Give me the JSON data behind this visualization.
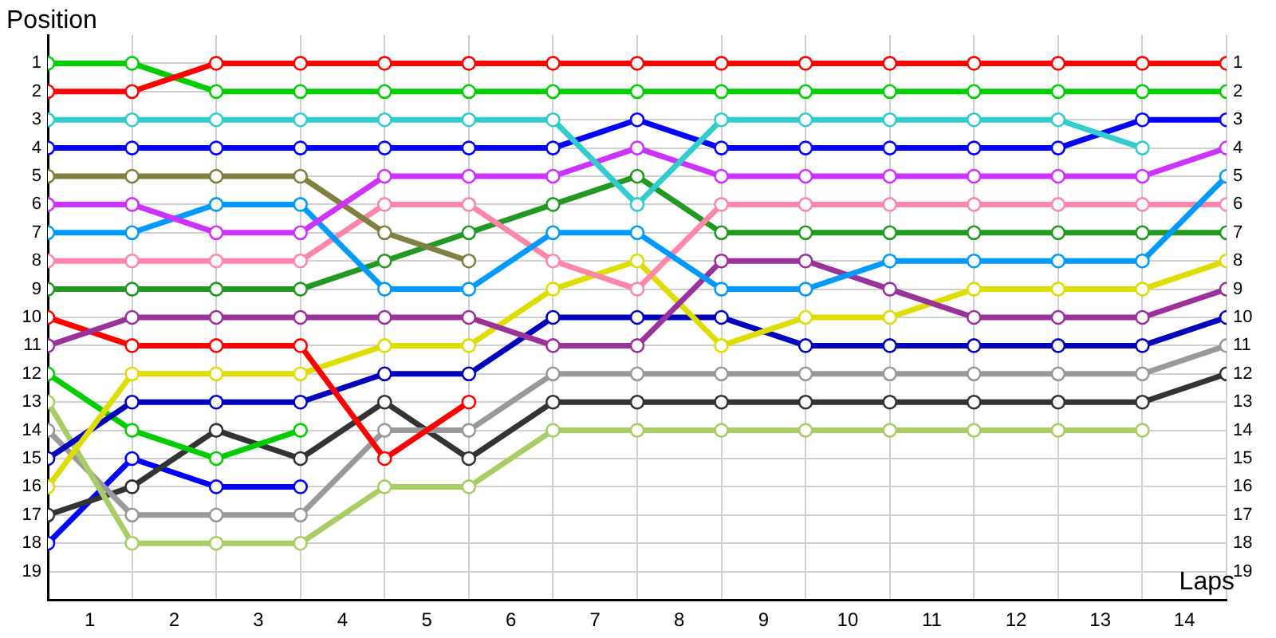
{
  "chart_data": {
    "type": "line",
    "xlabel": "Laps",
    "ylabel": "Position",
    "x": [
      0,
      1,
      2,
      3,
      4,
      5,
      6,
      7,
      8,
      9,
      10,
      11,
      12,
      13,
      14
    ],
    "xlim": [
      0,
      14
    ],
    "xticks": [
      {
        "value": 0,
        "label": null
      },
      {
        "value": 0.5,
        "label": "1"
      },
      {
        "value": 1,
        "label": null
      },
      {
        "value": 1.5,
        "label": "2"
      },
      {
        "value": 2,
        "label": null
      },
      {
        "value": 2.5,
        "label": "3"
      },
      {
        "value": 3,
        "label": null
      },
      {
        "value": 3.5,
        "label": "4"
      },
      {
        "value": 4,
        "label": null
      },
      {
        "value": 4.5,
        "label": "5"
      },
      {
        "value": 5,
        "label": null
      },
      {
        "value": 5.5,
        "label": "6"
      },
      {
        "value": 6,
        "label": null
      },
      {
        "value": 6.5,
        "label": "7"
      },
      {
        "value": 7,
        "label": null
      },
      {
        "value": 7.5,
        "label": "8"
      },
      {
        "value": 8,
        "label": null
      },
      {
        "value": 8.5,
        "label": "9"
      },
      {
        "value": 9,
        "label": null
      },
      {
        "value": 9.5,
        "label": "10"
      },
      {
        "value": 10,
        "label": null
      },
      {
        "value": 10.5,
        "label": "11"
      },
      {
        "value": 11,
        "label": null
      },
      {
        "value": 11.5,
        "label": "12"
      },
      {
        "value": 12,
        "label": null
      },
      {
        "value": 12.5,
        "label": "13"
      },
      {
        "value": 13,
        "label": null
      },
      {
        "value": 13.5,
        "label": "14"
      },
      {
        "value": 14,
        "label": null
      }
    ],
    "ylim": [
      20,
      0
    ],
    "yticks": [
      1,
      2,
      3,
      4,
      5,
      6,
      7,
      8,
      9,
      10,
      11,
      12,
      13,
      14,
      15,
      16,
      17,
      18,
      19
    ],
    "y2lim": [
      20,
      0
    ],
    "y2ticks": [
      1,
      2,
      3,
      4,
      5,
      6,
      7,
      8,
      9,
      10,
      11,
      12,
      13,
      14,
      15,
      16,
      17,
      18,
      19
    ],
    "grid": true,
    "legend": false,
    "marker": "circle",
    "line_style": "solid",
    "series": [
      {
        "color": "#ff0000",
        "values": [
          2,
          2,
          1,
          1,
          1,
          1,
          1,
          1,
          1,
          1,
          1,
          1,
          1,
          1,
          1
        ]
      },
      {
        "color": "#00cc00",
        "values": [
          1,
          1,
          2,
          2,
          2,
          2,
          2,
          2,
          2,
          2,
          2,
          2,
          2,
          2,
          2
        ]
      },
      {
        "color": "#33cccc",
        "values": [
          3,
          3,
          3,
          3,
          3,
          3,
          3,
          6,
          3,
          3,
          3,
          3,
          3,
          4,
          null
        ]
      },
      {
        "color": "#0000ff",
        "values": [
          4,
          4,
          4,
          4,
          4,
          4,
          4,
          3,
          4,
          4,
          4,
          4,
          4,
          3,
          3
        ]
      },
      {
        "color": "#cc33ff",
        "values": [
          6,
          6,
          7,
          7,
          5,
          5,
          5,
          4,
          5,
          5,
          5,
          5,
          5,
          5,
          4
        ]
      },
      {
        "color": "#0099ff",
        "values": [
          7,
          7,
          6,
          6,
          9,
          9,
          7,
          7,
          9,
          9,
          8,
          8,
          8,
          8,
          5
        ]
      },
      {
        "color": "#808040",
        "values": [
          5,
          5,
          5,
          5,
          7,
          8,
          null,
          null,
          null,
          null,
          null,
          null,
          null,
          null,
          null
        ]
      },
      {
        "color": "#ff88aa",
        "values": [
          8,
          8,
          8,
          8,
          6,
          6,
          8,
          9,
          6,
          6,
          6,
          6,
          6,
          6,
          6
        ]
      },
      {
        "color": "#229922",
        "values": [
          9,
          9,
          9,
          9,
          8,
          7,
          6,
          5,
          7,
          7,
          7,
          7,
          7,
          7,
          7
        ]
      },
      {
        "color": "#993399",
        "values": [
          11,
          10,
          10,
          10,
          10,
          10,
          11,
          11,
          8,
          8,
          9,
          10,
          10,
          10,
          9
        ]
      },
      {
        "color": "#ff0000",
        "values": [
          10,
          11,
          11,
          11,
          15,
          13,
          null,
          null,
          null,
          null,
          null,
          null,
          null,
          null,
          null
        ]
      },
      {
        "color": "#dddd00",
        "values": [
          16,
          12,
          12,
          12,
          11,
          11,
          9,
          8,
          11,
          10,
          10,
          9,
          9,
          9,
          8
        ]
      },
      {
        "color": "#0000bb",
        "values": [
          15,
          13,
          13,
          13,
          12,
          12,
          10,
          10,
          10,
          11,
          11,
          11,
          11,
          11,
          10
        ]
      },
      {
        "color": "#00cc00",
        "values": [
          12,
          14,
          15,
          14,
          null,
          null,
          null,
          null,
          null,
          null,
          null,
          null,
          null,
          null,
          null
        ]
      },
      {
        "color": "#aacc66",
        "values": [
          13,
          18,
          18,
          18,
          16,
          16,
          14,
          14,
          14,
          14,
          14,
          14,
          14,
          14,
          null
        ]
      },
      {
        "color": "#999999",
        "values": [
          14,
          17,
          17,
          17,
          14,
          14,
          12,
          12,
          12,
          12,
          12,
          12,
          12,
          12,
          11
        ]
      },
      {
        "color": "#333333",
        "values": [
          17,
          16,
          14,
          15,
          13,
          15,
          13,
          13,
          13,
          13,
          13,
          13,
          13,
          13,
          12
        ]
      },
      {
        "color": "#0000ff",
        "values": [
          18,
          15,
          16,
          16,
          null,
          null,
          null,
          null,
          null,
          null,
          null,
          null,
          null,
          null,
          null
        ]
      }
    ]
  }
}
